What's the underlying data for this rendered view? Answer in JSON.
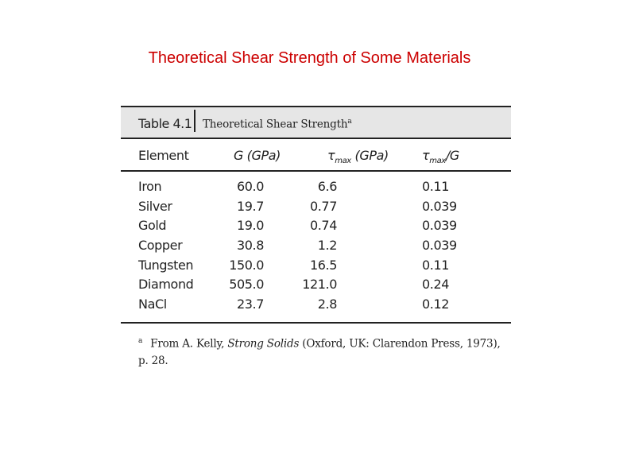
{
  "slide": {
    "title": "Theoretical Shear Strength of Some Materials"
  },
  "table": {
    "number": "Table 4.1",
    "caption": "Theoretical Shear Strength",
    "caption_marker": "a",
    "columns": {
      "element": "Element",
      "g_main": "G (GPa)",
      "tau_symbol": "τ",
      "tau_sub": "max",
      "tau_unit": " (GPa)",
      "ratio_symbol": "τ",
      "ratio_sub": "max",
      "ratio_tail": "/G"
    },
    "rows": [
      {
        "element": "Iron",
        "g": "60.0",
        "tau": "6.6",
        "ratio": "0.11"
      },
      {
        "element": "Silver",
        "g": "19.7",
        "tau": "0.77",
        "ratio": "0.039"
      },
      {
        "element": "Gold",
        "g": "19.0",
        "tau": "0.74",
        "ratio": "0.039"
      },
      {
        "element": "Copper",
        "g": "30.8",
        "tau": "1.2",
        "ratio": "0.039"
      },
      {
        "element": "Tungsten",
        "g": "150.0",
        "tau": "16.5",
        "ratio": "0.11"
      },
      {
        "element": "Diamond",
        "g": "505.0",
        "tau": "121.0",
        "ratio": "0.24"
      },
      {
        "element": "NaCl",
        "g": "23.7",
        "tau": "2.8",
        "ratio": "0.12"
      }
    ],
    "footnote": {
      "marker": "a",
      "prefix": "From A. Kelly, ",
      "book": "Strong Solids",
      "suffix": " (Oxford, UK: Clarendon Press, 1973), p. 28."
    }
  }
}
